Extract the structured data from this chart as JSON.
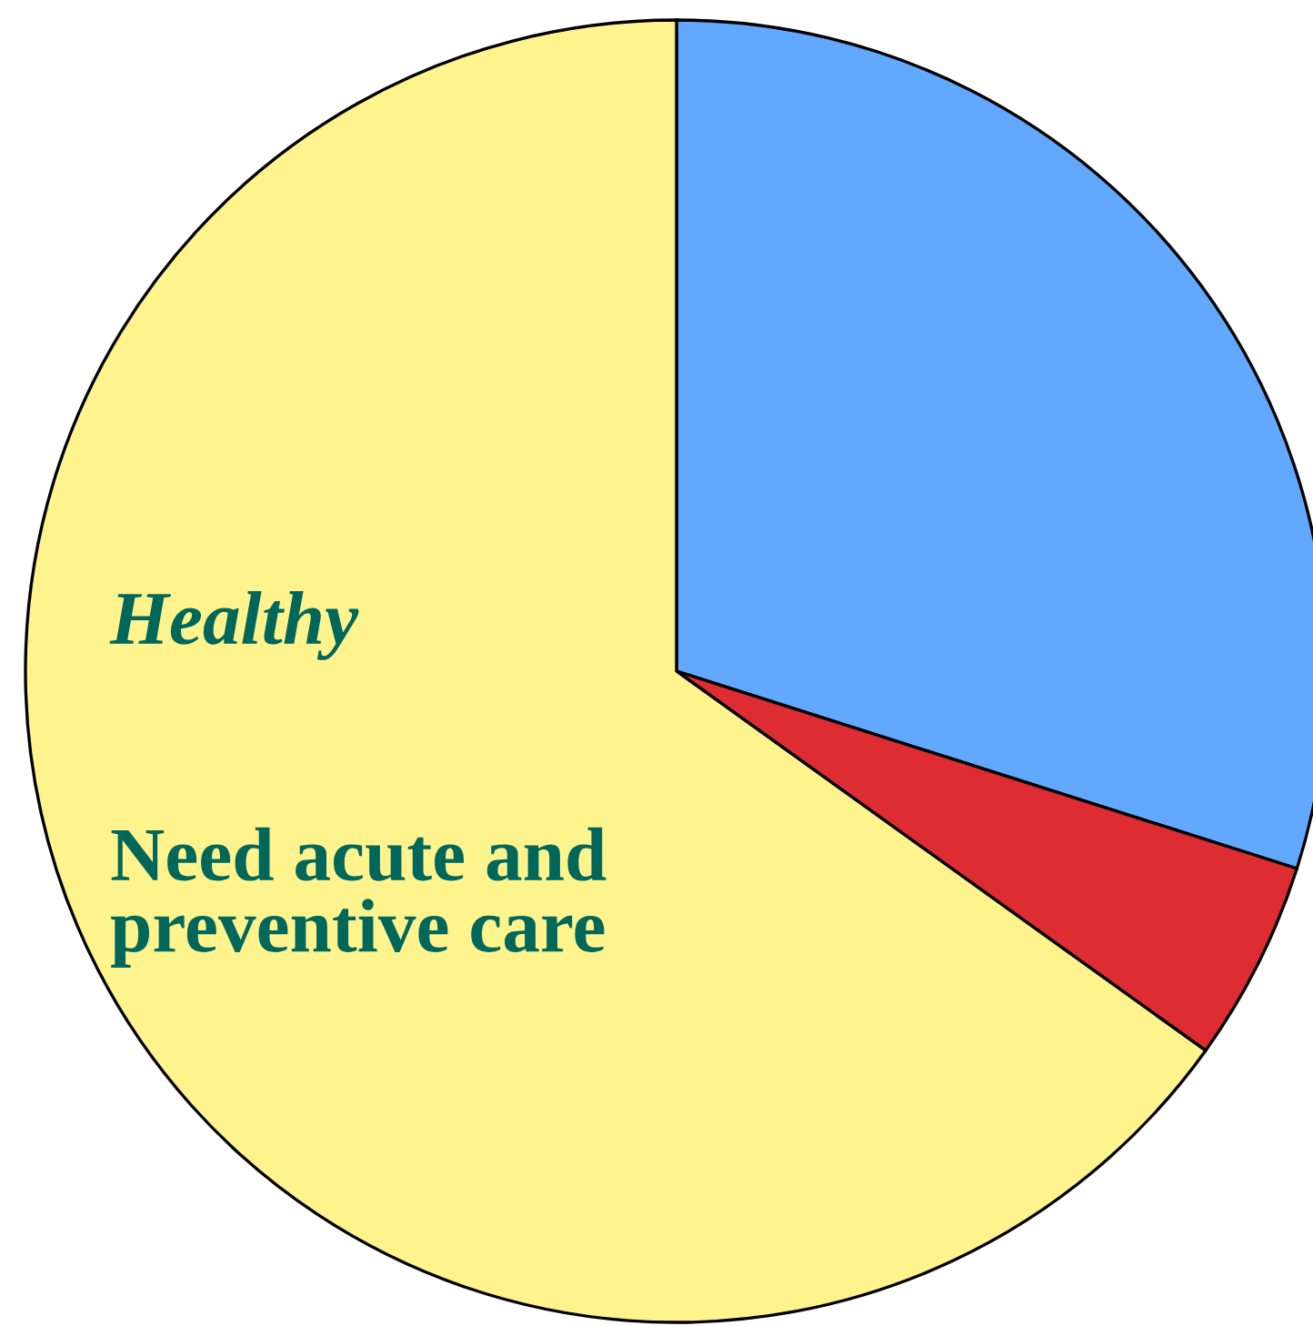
{
  "chart_data": {
    "type": "pie",
    "categories": [
      null,
      null,
      "Healthy"
    ],
    "values": [
      29.9,
      5.0,
      65.1
    ],
    "colors": [
      "#62a8fe",
      "#de2c33",
      "#fff38e"
    ],
    "annotations": [
      "Need acute and preventive care"
    ]
  }
}
